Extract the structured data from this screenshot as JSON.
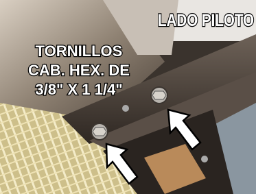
{
  "labels": {
    "corner": "LADO PILOTO",
    "lines": [
      "TORNILLOS",
      "CAB. HEX. DE",
      "3/8\" X 1 1/4\""
    ]
  }
}
